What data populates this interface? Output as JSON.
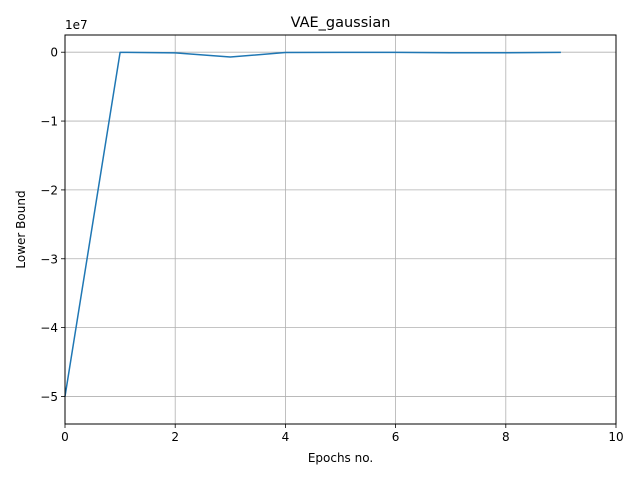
{
  "chart_data": {
    "type": "line",
    "title": "VAE_gaussian",
    "xlabel": "Epochs no.",
    "ylabel": "Lower Bound",
    "y_offset_label": "1e7",
    "xlim": [
      0,
      10
    ],
    "ylim": [
      -5.4,
      0.25
    ],
    "x_ticks": [
      0,
      2,
      4,
      6,
      8,
      10
    ],
    "x_tick_labels": [
      "0",
      "2",
      "4",
      "6",
      "8",
      "10"
    ],
    "y_ticks": [
      -5,
      -4,
      -3,
      -2,
      -1,
      0
    ],
    "y_tick_labels": [
      "−5",
      "−4",
      "−3",
      "−2",
      "−1",
      "0"
    ],
    "grid": true,
    "series": [
      {
        "color": "#1f77b4",
        "x": [
          0,
          1,
          2,
          3,
          4,
          5,
          6,
          7,
          8,
          9
        ],
        "y": [
          -5.0,
          -0.002,
          -0.01,
          -0.07,
          -0.005,
          -0.002,
          -0.002,
          -0.008,
          -0.008,
          -0.002
        ]
      }
    ]
  }
}
